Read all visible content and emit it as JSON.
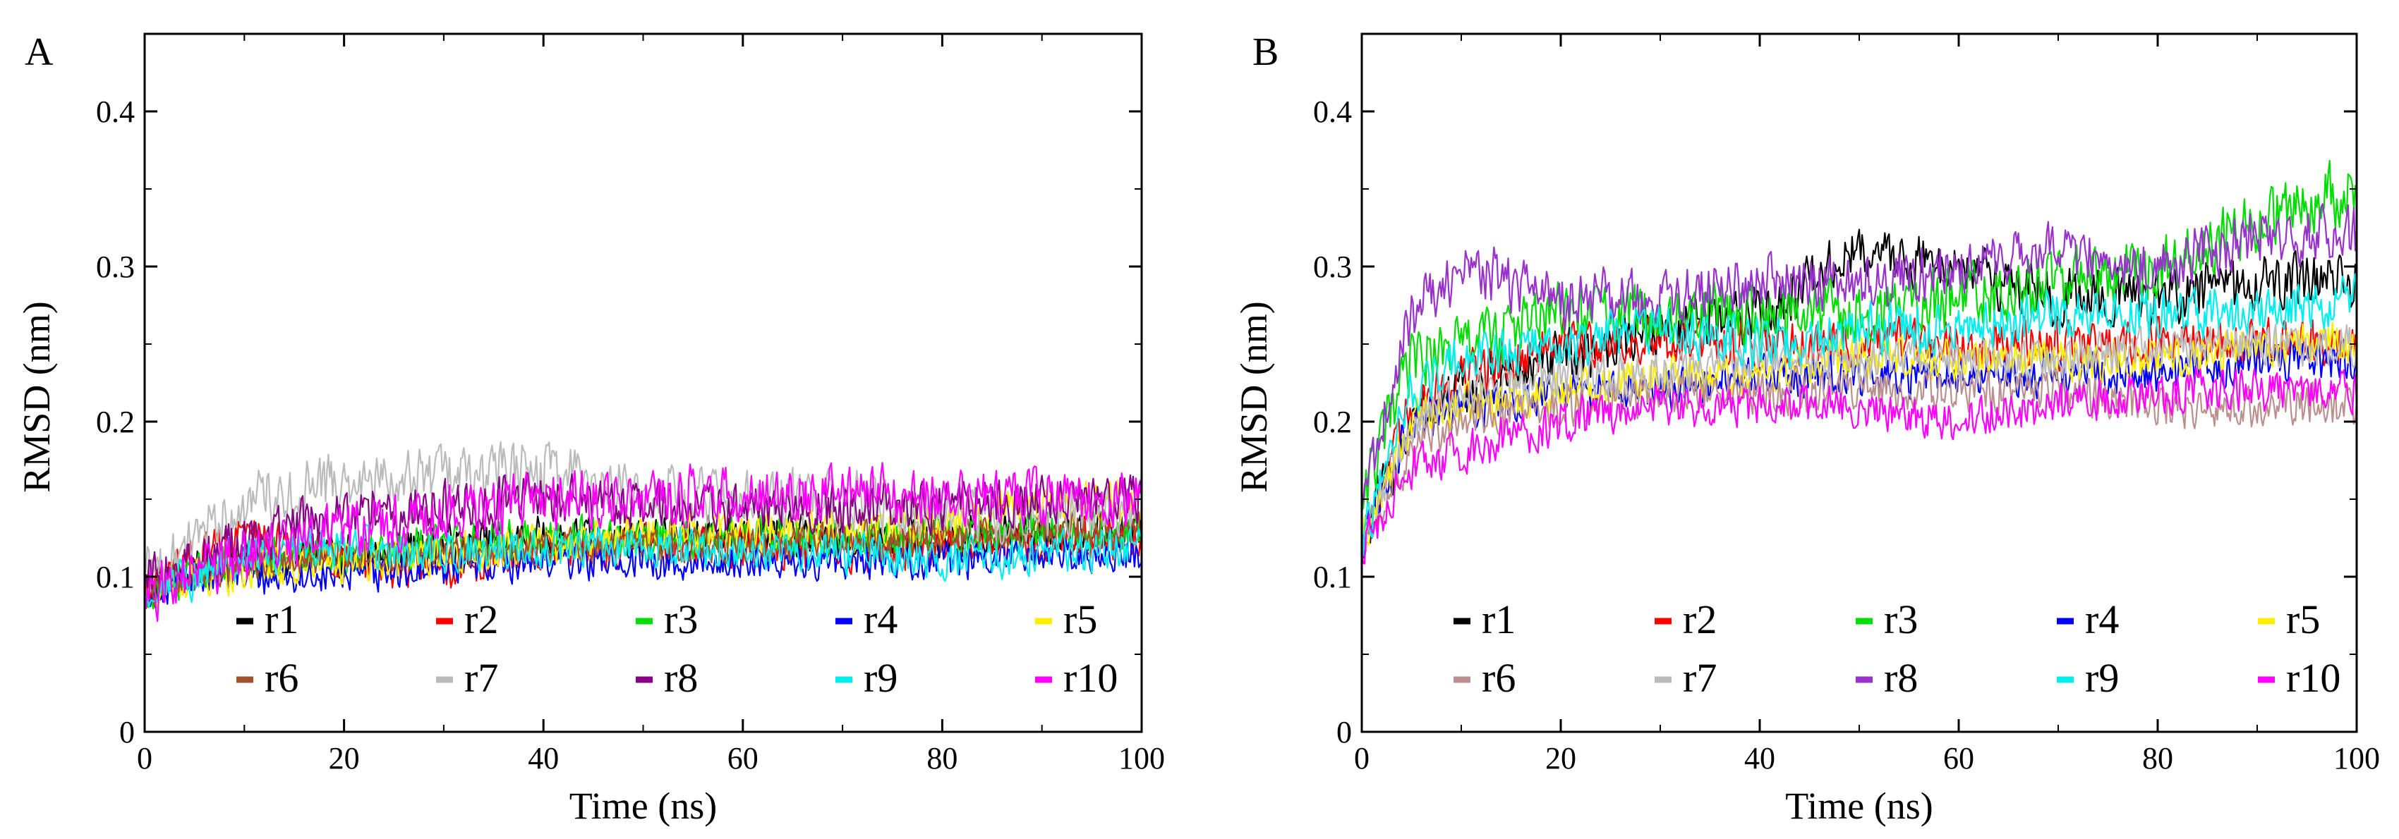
{
  "chart_data": [
    {
      "type": "line",
      "panel_label": "A",
      "xlabel": "Time (ns)",
      "ylabel": "RMSD (nm)",
      "xlim": [
        0,
        100
      ],
      "ylim": [
        0,
        0.45
      ],
      "xticks": [
        0,
        20,
        40,
        60,
        80,
        100
      ],
      "yticks": [
        0,
        0.1,
        0.2,
        0.3,
        0.4
      ],
      "ytick_labels": [
        "0",
        "0.1",
        "0.2",
        "0.3",
        "0.4"
      ],
      "legend_position": "bottom, inside plot, 2 rows x 5 columns",
      "x": [
        0,
        5,
        10,
        20,
        30,
        40,
        50,
        60,
        70,
        80,
        90,
        100
      ],
      "series": [
        {
          "name": "r1",
          "color": "#000000",
          "values": [
            0.09,
            0.105,
            0.11,
            0.115,
            0.12,
            0.125,
            0.125,
            0.13,
            0.125,
            0.125,
            0.13,
            0.13
          ],
          "noise": 0.012
        },
        {
          "name": "r2",
          "color": "#ff0000",
          "values": [
            0.09,
            0.11,
            0.13,
            0.11,
            0.105,
            0.115,
            0.12,
            0.12,
            0.115,
            0.12,
            0.125,
            0.125
          ],
          "noise": 0.012
        },
        {
          "name": "r3",
          "color": "#00dd00",
          "values": [
            0.09,
            0.1,
            0.11,
            0.115,
            0.12,
            0.125,
            0.125,
            0.125,
            0.125,
            0.125,
            0.13,
            0.13
          ],
          "noise": 0.012
        },
        {
          "name": "r4",
          "color": "#0000ff",
          "values": [
            0.09,
            0.1,
            0.1,
            0.1,
            0.105,
            0.11,
            0.11,
            0.11,
            0.11,
            0.11,
            0.115,
            0.115
          ],
          "noise": 0.01
        },
        {
          "name": "r5",
          "color": "#ffee00",
          "values": [
            0.09,
            0.1,
            0.105,
            0.11,
            0.115,
            0.12,
            0.125,
            0.13,
            0.13,
            0.135,
            0.145,
            0.15
          ],
          "noise": 0.012
        },
        {
          "name": "r6",
          "color": "#a0522d",
          "values": [
            0.09,
            0.1,
            0.11,
            0.115,
            0.115,
            0.12,
            0.12,
            0.12,
            0.125,
            0.125,
            0.13,
            0.13
          ],
          "noise": 0.01
        },
        {
          "name": "r7",
          "color": "#bbbbbb",
          "values": [
            0.1,
            0.12,
            0.15,
            0.16,
            0.165,
            0.17,
            0.155,
            0.15,
            0.15,
            0.14,
            0.14,
            0.145
          ],
          "noise": 0.016
        },
        {
          "name": "r8",
          "color": "#880088",
          "values": [
            0.1,
            0.11,
            0.125,
            0.14,
            0.145,
            0.15,
            0.145,
            0.145,
            0.145,
            0.145,
            0.15,
            0.15
          ],
          "noise": 0.014
        },
        {
          "name": "r9",
          "color": "#00eeee",
          "values": [
            0.09,
            0.1,
            0.115,
            0.12,
            0.115,
            0.12,
            0.12,
            0.115,
            0.115,
            0.11,
            0.115,
            0.12
          ],
          "noise": 0.012
        },
        {
          "name": "r10",
          "color": "#ff00ff",
          "values": [
            0.09,
            0.1,
            0.115,
            0.13,
            0.14,
            0.15,
            0.15,
            0.155,
            0.155,
            0.15,
            0.15,
            0.15
          ],
          "noise": 0.016
        }
      ]
    },
    {
      "type": "line",
      "panel_label": "B",
      "xlabel": "Time (ns)",
      "ylabel": "RMSD (nm)",
      "xlim": [
        0,
        100
      ],
      "ylim": [
        0,
        0.45
      ],
      "xticks": [
        0,
        20,
        40,
        60,
        80,
        100
      ],
      "yticks": [
        0,
        0.1,
        0.2,
        0.3,
        0.4
      ],
      "ytick_labels": [
        "0",
        "0.1",
        "0.2",
        "0.3",
        "0.4"
      ],
      "legend_position": "bottom, inside plot, 2 rows x 5 columns",
      "x": [
        0,
        5,
        10,
        20,
        30,
        40,
        50,
        60,
        70,
        80,
        90,
        100
      ],
      "series": [
        {
          "name": "r1",
          "color": "#000000",
          "values": [
            0.12,
            0.2,
            0.22,
            0.24,
            0.26,
            0.27,
            0.31,
            0.3,
            0.28,
            0.28,
            0.29,
            0.29
          ],
          "noise": 0.016
        },
        {
          "name": "r2",
          "color": "#ff0000",
          "values": [
            0.12,
            0.21,
            0.23,
            0.25,
            0.25,
            0.25,
            0.25,
            0.25,
            0.25,
            0.25,
            0.25,
            0.25
          ],
          "noise": 0.014
        },
        {
          "name": "r3",
          "color": "#00dd00",
          "values": [
            0.15,
            0.24,
            0.25,
            0.27,
            0.27,
            0.27,
            0.27,
            0.28,
            0.29,
            0.3,
            0.33,
            0.35
          ],
          "noise": 0.018
        },
        {
          "name": "r4",
          "color": "#0000ff",
          "values": [
            0.12,
            0.2,
            0.21,
            0.22,
            0.22,
            0.23,
            0.23,
            0.23,
            0.23,
            0.23,
            0.24,
            0.24
          ],
          "noise": 0.012
        },
        {
          "name": "r5",
          "color": "#ffee00",
          "values": [
            0.12,
            0.2,
            0.21,
            0.22,
            0.23,
            0.23,
            0.24,
            0.24,
            0.24,
            0.24,
            0.25,
            0.25
          ],
          "noise": 0.012
        },
        {
          "name": "r6",
          "color": "#bc8f8f",
          "values": [
            0.12,
            0.18,
            0.2,
            0.21,
            0.22,
            0.22,
            0.22,
            0.22,
            0.22,
            0.21,
            0.21,
            0.21
          ],
          "noise": 0.012
        },
        {
          "name": "r7",
          "color": "#bbbbbb",
          "values": [
            0.12,
            0.2,
            0.22,
            0.23,
            0.23,
            0.24,
            0.24,
            0.24,
            0.24,
            0.25,
            0.25,
            0.25
          ],
          "noise": 0.012
        },
        {
          "name": "r8",
          "color": "#9932cc",
          "values": [
            0.15,
            0.27,
            0.3,
            0.28,
            0.28,
            0.29,
            0.29,
            0.3,
            0.31,
            0.3,
            0.32,
            0.32
          ],
          "noise": 0.016
        },
        {
          "name": "r9",
          "color": "#00eeee",
          "values": [
            0.12,
            0.22,
            0.24,
            0.25,
            0.26,
            0.25,
            0.26,
            0.26,
            0.27,
            0.27,
            0.27,
            0.28
          ],
          "noise": 0.014
        },
        {
          "name": "r10",
          "color": "#ff00ff",
          "values": [
            0.12,
            0.17,
            0.18,
            0.2,
            0.21,
            0.21,
            0.21,
            0.2,
            0.21,
            0.22,
            0.22,
            0.22
          ],
          "noise": 0.012
        }
      ]
    }
  ]
}
